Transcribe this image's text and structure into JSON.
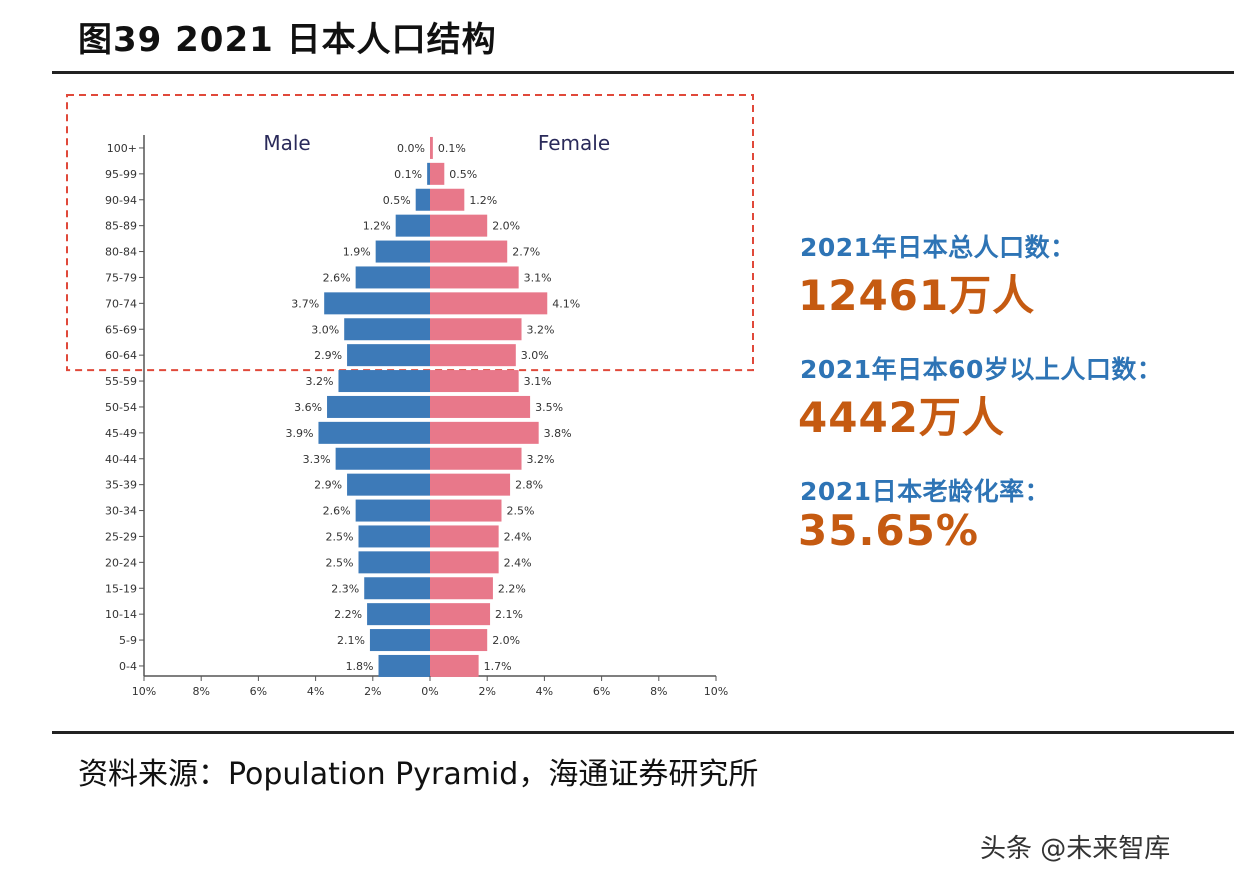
{
  "figure_title": "图39 2021 日本人口结构",
  "chart_data": {
    "type": "bar",
    "orientation": "horizontal-pyramid",
    "categories": [
      "100+",
      "95-99",
      "90-94",
      "85-89",
      "80-84",
      "75-79",
      "70-74",
      "65-69",
      "60-64",
      "55-59",
      "50-54",
      "45-49",
      "40-44",
      "35-39",
      "30-34",
      "25-29",
      "20-24",
      "15-19",
      "10-14",
      "5-9",
      "0-4"
    ],
    "series": [
      {
        "name": "Male",
        "values": [
          0.0,
          0.1,
          0.5,
          1.2,
          1.9,
          2.6,
          3.7,
          3.0,
          2.9,
          3.2,
          3.6,
          3.9,
          3.3,
          2.9,
          2.6,
          2.5,
          2.5,
          2.3,
          2.2,
          2.1,
          1.8
        ],
        "labels": [
          "0.0%",
          "0.1%",
          "0.5%",
          "1.2%",
          "1.9%",
          "2.6%",
          "3.7%",
          "3.0%",
          "2.9%",
          "3.2%",
          "3.6%",
          "3.9%",
          "3.3%",
          "2.9%",
          "2.6%",
          "2.5%",
          "2.5%",
          "2.3%",
          "2.2%",
          "2.1%",
          "1.8%"
        ],
        "color": "#3d7ab8"
      },
      {
        "name": "Female",
        "values": [
          0.1,
          0.5,
          1.2,
          2.0,
          2.7,
          3.1,
          4.1,
          3.2,
          3.0,
          3.1,
          3.5,
          3.8,
          3.2,
          2.8,
          2.5,
          2.4,
          2.4,
          2.2,
          2.1,
          2.0,
          1.7
        ],
        "labels": [
          "0.1%",
          "0.5%",
          "1.2%",
          "2.0%",
          "2.7%",
          "3.1%",
          "4.1%",
          "3.2%",
          "3.0%",
          "3.1%",
          "3.5%",
          "3.8%",
          "3.2%",
          "2.8%",
          "2.5%",
          "2.4%",
          "2.4%",
          "2.2%",
          "2.1%",
          "2.0%",
          "1.7%"
        ],
        "color": "#e8788a"
      }
    ],
    "x_ticks": [
      "10%",
      "8%",
      "6%",
      "4%",
      "2%",
      "0%",
      "2%",
      "4%",
      "6%",
      "8%",
      "10%"
    ],
    "xlim": [
      -10,
      10
    ],
    "grid": false,
    "highlight_box_rows": [
      "100+",
      "60-64"
    ],
    "highlight_box_color": "#e0493a"
  },
  "stats": {
    "total_label": "2021年日本总人口数：",
    "total_value": "12461万人",
    "over60_label": "2021年日本60岁以上人口数：",
    "over60_value": "4442万人",
    "aging_label": "2021日本老龄化率：",
    "aging_value": "35.65%",
    "label_color": "#2e74b5",
    "value_color": "#c55a11"
  },
  "source": "资料来源：Population Pyramid，海通证券研究所",
  "watermark": "头条 @未来智库"
}
